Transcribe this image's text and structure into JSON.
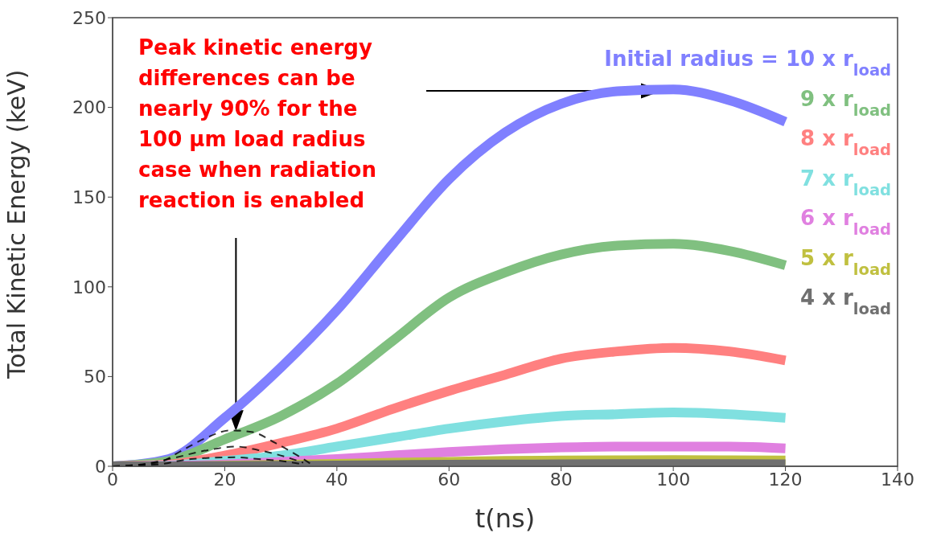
{
  "chart_data": {
    "type": "line",
    "xlabel": "t(ns)",
    "ylabel": "Total Kinetic Energy (keV)",
    "xlim": [
      0,
      140
    ],
    "xticks": [
      0,
      20,
      40,
      60,
      80,
      100,
      120,
      140
    ],
    "ylim": [
      0,
      250
    ],
    "yticks": [
      0,
      50,
      100,
      150,
      200,
      250
    ],
    "grid": false,
    "legend": "top right",
    "marker": "none",
    "line_style": "solid",
    "x": [
      0,
      10,
      20,
      30,
      40,
      50,
      60,
      70,
      80,
      90,
      100,
      110,
      120
    ],
    "series": [
      {
        "name": "Initial radius = 10 x r$_{load}$",
        "color": "#8080ff",
        "values": [
          0,
          4,
          27,
          55,
          87,
          124,
          160,
          186,
          202,
          209,
          210,
          204,
          192
        ]
      },
      {
        "name": "9 x r$_{load}$",
        "color": "#80c080",
        "values": [
          0,
          3,
          15,
          28,
          46,
          70,
          94,
          108,
          118,
          123,
          124,
          120,
          112
        ]
      },
      {
        "name": "8 x r$_{load}$",
        "color": "#ff8080",
        "values": [
          0,
          1,
          6,
          13,
          21,
          32,
          42,
          51,
          60,
          64,
          66,
          64,
          59
        ]
      },
      {
        "name": "7 x r$_{load}$",
        "color": "#80e0e0",
        "values": [
          0,
          0.5,
          3,
          6,
          11,
          16,
          21,
          25,
          28,
          29,
          30,
          29,
          27
        ]
      },
      {
        "name": "6 x r$_{load}$",
        "color": "#e080e0",
        "values": [
          0,
          0.2,
          1,
          2.5,
          4,
          6,
          8,
          9.5,
          10.5,
          11,
          11,
          11,
          10
        ]
      },
      {
        "name": "5 x r$_{load}$",
        "color": "#c0c040",
        "values": [
          0,
          0,
          0.3,
          0.8,
          1.3,
          2,
          2.5,
          3,
          3.2,
          3.4,
          3.5,
          3.4,
          3.2
        ]
      },
      {
        "name": "4 x r$_{load}$",
        "color": "#707070",
        "values": [
          0,
          0,
          0.1,
          0.3,
          0.5,
          0.7,
          0.9,
          1,
          1.1,
          1.2,
          1.2,
          1.2,
          1.1
        ]
      },
      {
        "color": "#000000",
        "line_style": "dashed",
        "x": [
          0,
          8,
          12.5,
          16.8,
          21,
          25,
          29,
          33,
          36
        ],
        "values": [
          0,
          2,
          9,
          16,
          20,
          19,
          13,
          6,
          0
        ]
      },
      {
        "color": "#000000",
        "line_style": "dashed",
        "x": [
          0,
          5,
          10,
          17,
          22,
          26,
          30,
          34
        ],
        "values": [
          0,
          1,
          4,
          9,
          11,
          9,
          6,
          2
        ]
      },
      {
        "color": "#000000",
        "line_style": "dashed",
        "x": [
          0,
          8,
          14,
          22,
          26,
          30,
          34
        ],
        "values": [
          0,
          1,
          4,
          5,
          4,
          3,
          1
        ]
      }
    ],
    "annotations": [
      {
        "text": "Peak kinetic energy\ndifferences can be\nnearly 90% for the\n100 μm load radius\ncase when radiation\nreaction is enabled",
        "x": 22,
        "y": 20
      }
    ]
  }
}
